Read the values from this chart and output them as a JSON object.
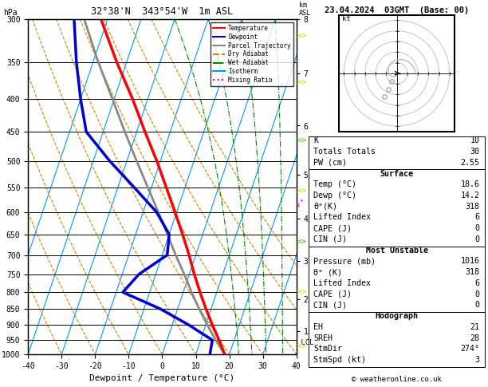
{
  "title_left": "32°38'N  343°54'W  1m ASL",
  "title_right": "23.04.2024  03GMT  (Base: 00)",
  "copyright": "© weatheronline.co.uk",
  "xlabel": "Dewpoint / Temperature (°C)",
  "pressure_ticks": [
    300,
    350,
    400,
    450,
    500,
    550,
    600,
    650,
    700,
    750,
    800,
    850,
    900,
    950,
    1000
  ],
  "temp_range": [
    -40,
    40
  ],
  "lcl_pressure": 960,
  "km_ticks": [
    1,
    2,
    3,
    4,
    5,
    6,
    7,
    8
  ],
  "km_pressures": [
    920,
    820,
    715,
    615,
    525,
    440,
    365,
    300
  ],
  "temp_profile_pressure": [
    1000,
    950,
    900,
    850,
    800,
    750,
    700,
    650,
    600,
    550,
    500,
    450,
    400,
    350,
    300
  ],
  "temp_profile_temp": [
    18.6,
    15.5,
    12.0,
    8.5,
    5.0,
    1.5,
    -2.0,
    -6.0,
    -10.5,
    -15.5,
    -21.0,
    -27.5,
    -34.5,
    -43.0,
    -52.0
  ],
  "dewp_profile_pressure": [
    1000,
    950,
    900,
    850,
    800,
    750,
    700,
    650,
    600,
    550,
    500,
    450,
    400,
    350,
    300
  ],
  "dewp_profile_temp": [
    14.2,
    13.5,
    5.0,
    -5.0,
    -18.0,
    -15.0,
    -8.5,
    -10.0,
    -16.0,
    -25.0,
    -35.0,
    -45.0,
    -50.0,
    -55.0,
    -60.0
  ],
  "parcel_profile_pressure": [
    1000,
    950,
    900,
    850,
    800,
    750,
    700,
    650,
    600,
    550,
    500,
    450,
    400,
    350,
    300
  ],
  "parcel_profile_temp": [
    18.6,
    14.5,
    10.5,
    6.5,
    2.5,
    -1.5,
    -6.0,
    -10.5,
    -15.5,
    -21.0,
    -27.0,
    -33.5,
    -40.5,
    -48.5,
    -57.0
  ],
  "temp_color": "#ff0000",
  "dewp_color": "#0000cc",
  "parcel_color": "#888888",
  "dry_adiabat_color": "#cc8800",
  "wet_adiabat_color": "#008800",
  "isotherm_color": "#0099ff",
  "mixing_ratio_color": "#ff00aa",
  "skew_factor": 28,
  "legend_items": [
    "Temperature",
    "Dewpoint",
    "Parcel Trajectory",
    "Dry Adiabat",
    "Wet Adiabat",
    "Isotherm",
    "Mixing Ratio"
  ],
  "K": 10,
  "TT": 30,
  "PW": 2.55,
  "surf_temp": 18.6,
  "surf_dewp": 14.2,
  "surf_theta": 318,
  "surf_li": 6,
  "surf_cape": 0,
  "surf_cin": 0,
  "mu_pres": 1016,
  "mu_theta": 318,
  "mu_li": 6,
  "mu_cape": 0,
  "mu_cin": 0,
  "hodo_eh": 21,
  "hodo_sreh": 28,
  "hodo_stmdir": "274°",
  "hodo_stmspd": 3
}
